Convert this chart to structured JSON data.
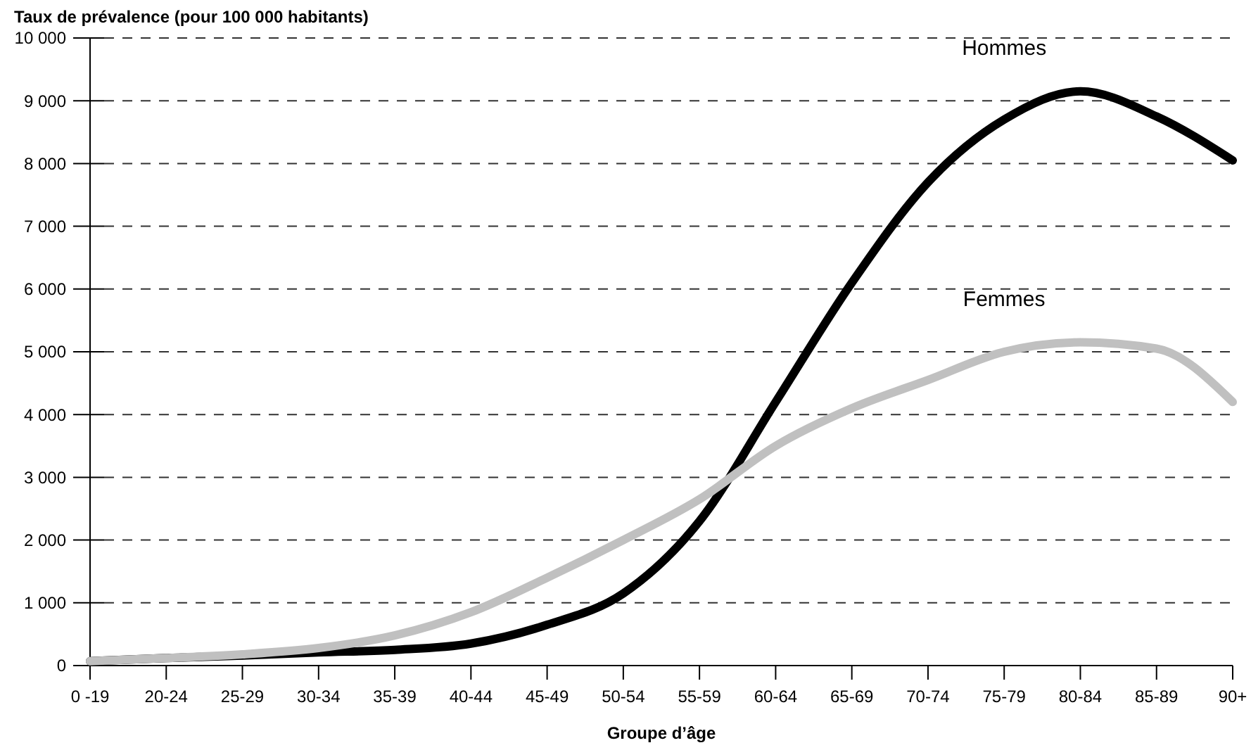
{
  "chart_data": {
    "type": "line",
    "ylabel": "Taux de prévalence (pour 100 000 habitants)",
    "xlabel": "Groupe d’âge",
    "categories": [
      "0 -19",
      "20-24",
      "25-29",
      "30-34",
      "35-39",
      "40-44",
      "45-49",
      "50-54",
      "55-59",
      "60-64",
      "65-69",
      "70-74",
      "75-79",
      "80-84",
      "85-89",
      "90+"
    ],
    "series": [
      {
        "name": "Hommes",
        "color": "#000000",
        "values": [
          70,
          120,
          160,
          210,
          250,
          350,
          650,
          1150,
          2300,
          4200,
          6100,
          7700,
          8700,
          9150,
          8750,
          8050
        ]
      },
      {
        "name": "Femmes",
        "color": "#c0c0c0",
        "values": [
          70,
          120,
          180,
          280,
          480,
          850,
          1400,
          2000,
          2650,
          3500,
          4100,
          4550,
          5000,
          5150,
          5050,
          4200
        ]
      }
    ],
    "ylim": [
      0,
      10000
    ],
    "yticks": [
      {
        "value": 0,
        "label": "0"
      },
      {
        "value": 1000,
        "label": "1 000"
      },
      {
        "value": 2000,
        "label": "2 000"
      },
      {
        "value": 3000,
        "label": "3 000"
      },
      {
        "value": 4000,
        "label": "4 000"
      },
      {
        "value": 5000,
        "label": "5 000"
      },
      {
        "value": 6000,
        "label": "6 000"
      },
      {
        "value": 7000,
        "label": "7 000"
      },
      {
        "value": 8000,
        "label": "8 000"
      },
      {
        "value": 9000,
        "label": "9 000"
      },
      {
        "value": 10000,
        "label": "10 000"
      }
    ],
    "grid": "y",
    "legend": false,
    "line_style": "solid",
    "marker": "none"
  }
}
